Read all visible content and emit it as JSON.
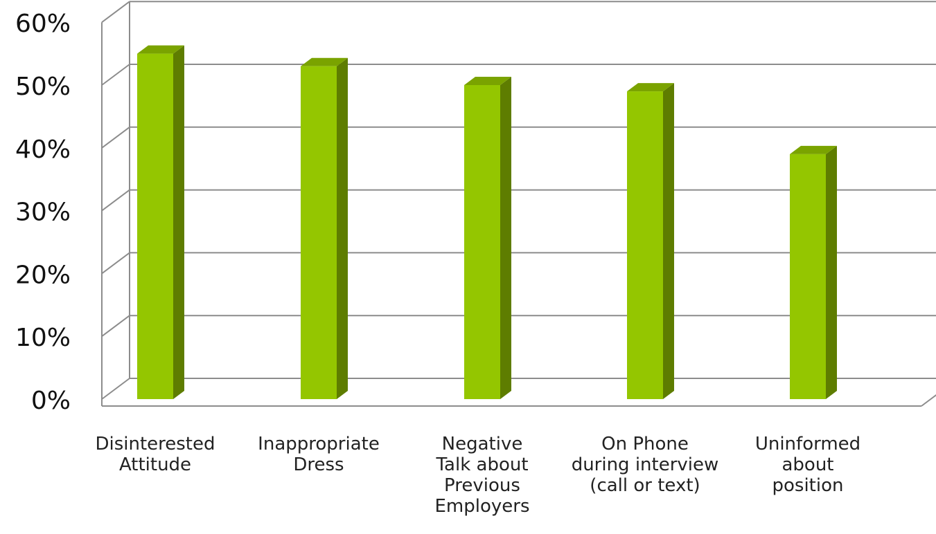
{
  "chart_data": {
    "type": "bar",
    "style": "3d-column",
    "categories": [
      [
        "Disinterested",
        "Attitude"
      ],
      [
        "Inappropriate",
        "Dress"
      ],
      [
        "Negative",
        "Talk about",
        "Previous",
        "Employers"
      ],
      [
        "On Phone",
        "during interview",
        "(call or text)"
      ],
      [
        "Uninformed",
        "about",
        "position"
      ]
    ],
    "values": [
      55,
      53,
      50,
      49,
      39
    ],
    "y_ticks": [
      "0%",
      "10%",
      "20%",
      "30%",
      "40%",
      "50%",
      "60%"
    ],
    "ylim": [
      0,
      60
    ],
    "unit": "%",
    "grid": true,
    "legend": "none",
    "colors": {
      "bar_front": "#94c600",
      "bar_side": "#5e7d00",
      "bar_top": "#7aa300",
      "grid": "#8c8c8c"
    }
  }
}
